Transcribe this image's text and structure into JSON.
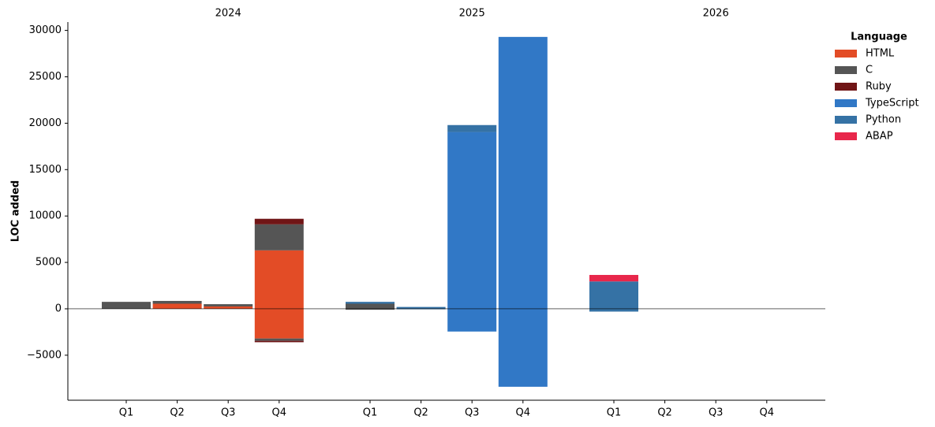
{
  "chart_data": {
    "type": "bar",
    "stacked": true,
    "y_label": "LOC added",
    "legend_title": "Language",
    "legend_position": "upper right",
    "groups": [
      {
        "name": "2024",
        "categories": [
          "Q1",
          "Q2",
          "Q3",
          "Q4"
        ]
      },
      {
        "name": "2025",
        "categories": [
          "Q1",
          "Q2",
          "Q3",
          "Q4"
        ]
      },
      {
        "name": "2026",
        "categories": [
          "Q1",
          "Q2",
          "Q3",
          "Q4"
        ]
      }
    ],
    "series": [
      {
        "name": "HTML",
        "color": "#e34c26",
        "values": [
          null,
          550,
          250,
          6300,
          null,
          null,
          null,
          null,
          null,
          null,
          null,
          null
        ],
        "removed": [
          null,
          null,
          null,
          -3200,
          null,
          null,
          null,
          null,
          null,
          null,
          null,
          null
        ]
      },
      {
        "name": "C",
        "color": "#555555",
        "values": [
          750,
          300,
          250,
          2800,
          550,
          null,
          null,
          null,
          null,
          null,
          null,
          null
        ],
        "removed": [
          null,
          null,
          null,
          -250,
          -100,
          null,
          null,
          null,
          null,
          null,
          null,
          null
        ]
      },
      {
        "name": "Ruby",
        "color": "#701516",
        "values": [
          null,
          null,
          null,
          600,
          null,
          null,
          null,
          null,
          null,
          null,
          null,
          null
        ],
        "removed": [
          null,
          null,
          null,
          -150,
          null,
          null,
          null,
          null,
          null,
          null,
          null,
          null
        ]
      },
      {
        "name": "TypeScript",
        "color": "#3178c6",
        "values": [
          null,
          null,
          null,
          null,
          null,
          null,
          19050,
          29300,
          null,
          null,
          null,
          null
        ],
        "removed": [
          null,
          null,
          null,
          null,
          null,
          null,
          -2450,
          -8400,
          null,
          null,
          null,
          null
        ]
      },
      {
        "name": "Python",
        "color": "#3572a5",
        "values": [
          null,
          null,
          null,
          null,
          200,
          200,
          750,
          null,
          2950,
          null,
          null,
          null
        ],
        "removed": [
          null,
          null,
          null,
          null,
          null,
          -50,
          null,
          null,
          -300,
          null,
          null,
          null
        ]
      },
      {
        "name": "ABAP",
        "color": "#e8274b",
        "values": [
          null,
          null,
          null,
          null,
          null,
          null,
          null,
          null,
          700,
          null,
          null,
          null
        ],
        "removed": [
          null,
          null,
          null,
          null,
          null,
          null,
          null,
          null,
          null,
          null,
          null,
          null
        ]
      }
    ],
    "ylim": [
      -9850,
      30900
    ],
    "yticks": [
      {
        "value": -5000,
        "label": "−5000"
      },
      0,
      5000,
      10000,
      15000,
      20000,
      25000,
      30000
    ]
  }
}
